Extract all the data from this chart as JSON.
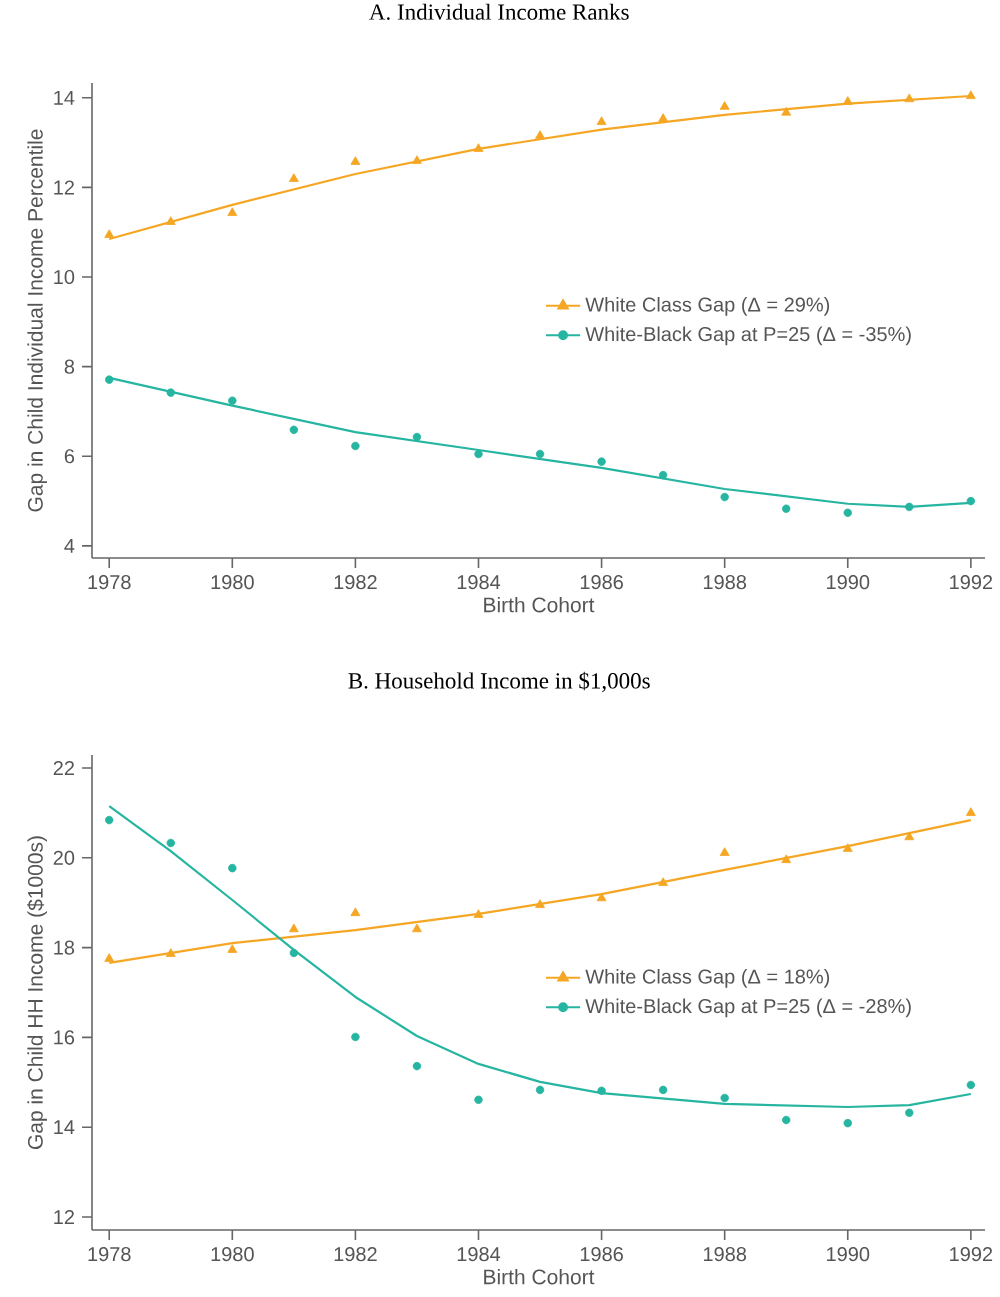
{
  "chart_data": [
    {
      "type": "scatter",
      "title": "A. Individual Income Ranks",
      "xlabel": "Birth Cohort",
      "ylabel": "Gap in Child Individual Income Percentile",
      "x": [
        1978,
        1979,
        1980,
        1981,
        1982,
        1983,
        1984,
        1985,
        1986,
        1987,
        1988,
        1989,
        1990,
        1991,
        1992
      ],
      "xlim": [
        1977.72,
        1992.23
      ],
      "xticks": [
        1978,
        1980,
        1982,
        1984,
        1986,
        1988,
        1990,
        1992
      ],
      "ylim": [
        3.73,
        14.33
      ],
      "yticks": [
        4,
        6,
        8,
        10,
        12,
        14
      ],
      "grid": false,
      "legend": "right",
      "series": [
        {
          "name": "White Class Gap  (Δ = 29%)",
          "color": "#f5a623",
          "marker": "triangle",
          "values": [
            10.94,
            11.23,
            11.43,
            12.19,
            12.57,
            12.59,
            12.86,
            13.15,
            13.46,
            13.53,
            13.8,
            13.67,
            13.91,
            13.97,
            14.04
          ]
        },
        {
          "name": "White-Black Gap at P=25  (Δ = -35%)",
          "color": "#26b5a0",
          "marker": "circle",
          "values": [
            7.71,
            7.42,
            7.24,
            6.59,
            6.23,
            6.43,
            6.05,
            6.05,
            5.88,
            5.58,
            5.09,
            4.83,
            4.74,
            4.87,
            5.0
          ]
        },
        {
          "type": "line",
          "color": "#f5a623",
          "x": [
            1978,
            1980,
            1982,
            1984,
            1986,
            1988,
            1990,
            1992
          ],
          "values": [
            10.85,
            11.61,
            12.3,
            12.86,
            13.29,
            13.62,
            13.87,
            14.04
          ]
        },
        {
          "type": "line",
          "color": "#26b5a0",
          "x": [
            1978,
            1980,
            1982,
            1984,
            1986,
            1988,
            1990,
            1991,
            1992
          ],
          "values": [
            7.75,
            7.13,
            6.54,
            6.14,
            5.74,
            5.27,
            4.94,
            4.87,
            4.96
          ]
        }
      ]
    },
    {
      "type": "scatter",
      "title": "B. Household Income in $1,000s",
      "xlabel": "Birth Cohort",
      "ylabel": "Gap in Child HH Income ($1000s)",
      "x": [
        1978,
        1979,
        1980,
        1981,
        1982,
        1983,
        1984,
        1985,
        1986,
        1987,
        1988,
        1989,
        1990,
        1991,
        1992
      ],
      "xlim": [
        1977.72,
        1992.23
      ],
      "xticks": [
        1978,
        1980,
        1982,
        1984,
        1986,
        1988,
        1990,
        1992
      ],
      "ylim": [
        11.71,
        22.29
      ],
      "yticks": [
        12,
        14,
        16,
        18,
        20,
        22
      ],
      "grid": false,
      "legend": "right",
      "series": [
        {
          "name": "White Class Gap  (Δ = 18%)",
          "color": "#f5a623",
          "marker": "triangle",
          "values": [
            17.75,
            17.86,
            17.95,
            18.41,
            18.77,
            18.41,
            18.73,
            18.95,
            19.1,
            19.44,
            20.11,
            19.95,
            20.2,
            20.46,
            21.0
          ]
        },
        {
          "name": "White-Black Gap at P=25  (Δ = -28%)",
          "color": "#26b5a0",
          "marker": "circle",
          "values": [
            20.84,
            20.33,
            19.77,
            17.88,
            16.01,
            15.36,
            14.61,
            14.83,
            14.81,
            14.83,
            14.65,
            14.16,
            14.09,
            14.32,
            14.94
          ]
        },
        {
          "type": "line",
          "color": "#f5a623",
          "x": [
            1978,
            1980,
            1982,
            1984,
            1986,
            1988,
            1990,
            1992
          ],
          "values": [
            17.66,
            18.1,
            18.39,
            18.75,
            19.19,
            19.73,
            20.26,
            20.84
          ]
        },
        {
          "type": "line",
          "color": "#26b5a0",
          "x": [
            1978,
            1979,
            1980,
            1981,
            1982,
            1983,
            1984,
            1985,
            1986,
            1988,
            1990,
            1991,
            1992
          ],
          "values": [
            21.15,
            20.15,
            19.06,
            17.95,
            16.9,
            16.03,
            15.41,
            15.01,
            14.76,
            14.52,
            14.45,
            14.49,
            14.74
          ]
        }
      ]
    }
  ]
}
